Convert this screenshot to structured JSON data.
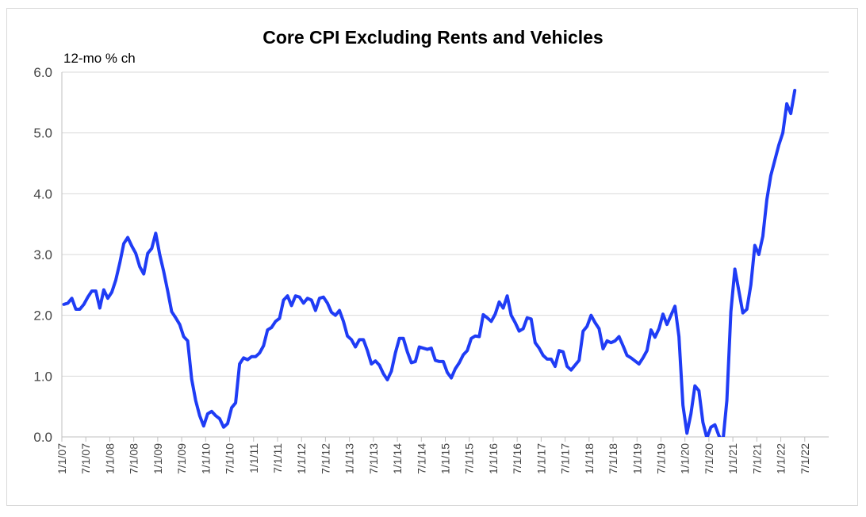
{
  "chart_data": {
    "type": "line",
    "title": "Core CPI Excluding Rents and Vehicles",
    "ylabel": "12-mo % ch",
    "xlabel": "",
    "ylim": [
      0,
      6
    ],
    "yticks": [
      "0.0",
      "1.0",
      "2.0",
      "3.0",
      "4.0",
      "5.0",
      "6.0"
    ],
    "xticks": [
      "1/1/07",
      "7/1/07",
      "1/1/08",
      "7/1/08",
      "1/1/09",
      "7/1/09",
      "1/1/10",
      "7/1/10",
      "1/1/11",
      "7/1/11",
      "1/1/12",
      "7/1/12",
      "1/1/13",
      "7/1/13",
      "1/1/14",
      "7/1/14",
      "1/1/15",
      "7/1/15",
      "1/1/16",
      "7/1/16",
      "1/1/17",
      "7/1/17",
      "1/1/18",
      "7/1/18",
      "1/1/19",
      "7/1/19",
      "1/1/20",
      "7/1/20",
      "1/1/21",
      "7/1/21",
      "1/1/22",
      "7/1/22"
    ],
    "grid": "horizontal",
    "legend": "none",
    "colors": {
      "series": "#1f3cf5",
      "grid": "#d9d9d9",
      "axis": "#bfbfbf"
    },
    "series": [
      {
        "start": "2007-01",
        "frequency": "monthly",
        "values": [
          2.18,
          2.2,
          2.28,
          2.1,
          2.1,
          2.18,
          2.3,
          2.4,
          2.4,
          2.12,
          2.42,
          2.28,
          2.38,
          2.58,
          2.86,
          3.18,
          3.28,
          3.14,
          3.02,
          2.8,
          2.68,
          3.02,
          3.1,
          3.35,
          3.0,
          2.72,
          2.4,
          2.06,
          1.96,
          1.85,
          1.65,
          1.58,
          0.95,
          0.6,
          0.35,
          0.18,
          0.38,
          0.42,
          0.35,
          0.3,
          0.16,
          0.22,
          0.48,
          0.56,
          1.2,
          1.3,
          1.27,
          1.32,
          1.32,
          1.38,
          1.5,
          1.76,
          1.8,
          1.9,
          1.95,
          2.25,
          2.32,
          2.16,
          2.32,
          2.3,
          2.2,
          2.28,
          2.25,
          2.08,
          2.28,
          2.3,
          2.2,
          2.05,
          2.0,
          2.08,
          1.9,
          1.66,
          1.6,
          1.48,
          1.6,
          1.6,
          1.42,
          1.2,
          1.25,
          1.18,
          1.04,
          0.94,
          1.08,
          1.38,
          1.62,
          1.62,
          1.4,
          1.22,
          1.24,
          1.48,
          1.46,
          1.44,
          1.46,
          1.26,
          1.24,
          1.24,
          1.06,
          0.97,
          1.12,
          1.22,
          1.35,
          1.42,
          1.62,
          1.66,
          1.65,
          2.01,
          1.96,
          1.9,
          2.02,
          2.22,
          2.12,
          2.32,
          2.0,
          1.88,
          1.74,
          1.78,
          1.96,
          1.94,
          1.55,
          1.46,
          1.34,
          1.28,
          1.28,
          1.16,
          1.42,
          1.4,
          1.16,
          1.1,
          1.18,
          1.26,
          1.74,
          1.82,
          2.0,
          1.88,
          1.78,
          1.45,
          1.58,
          1.55,
          1.58,
          1.65,
          1.5,
          1.34,
          1.3,
          1.25,
          1.2,
          1.3,
          1.42,
          1.76,
          1.64,
          1.78,
          2.02,
          1.85,
          2.0,
          2.15,
          1.65,
          0.52,
          0.06,
          0.38,
          0.84,
          0.76,
          0.24,
          -0.02,
          0.16,
          0.2,
          0.02,
          -0.08,
          0.6,
          2.06,
          2.76,
          2.4,
          2.04,
          2.1,
          2.5,
          3.15,
          3.0,
          3.3,
          3.9,
          4.3,
          4.55,
          4.8,
          5.0,
          5.48,
          5.32,
          5.7
        ]
      }
    ]
  }
}
